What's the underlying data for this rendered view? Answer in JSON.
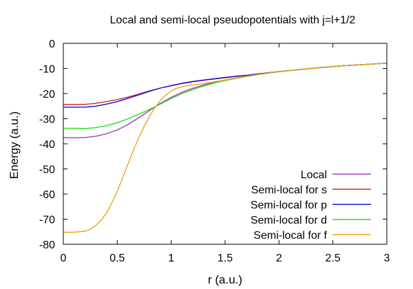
{
  "chart_data": {
    "type": "line",
    "title": "Local and semi-local pseudopotentials with j=l+1/2",
    "xlabel": "r (a.u.)",
    "ylabel": "Energy (a.u.)",
    "xlim": [
      0,
      3
    ],
    "ylim": [
      -80,
      0
    ],
    "xticks": [
      "0",
      "0.5",
      "1",
      "1.5",
      "2",
      "2.5",
      "3"
    ],
    "yticks": [
      "0",
      "-10",
      "-20",
      "-30",
      "-40",
      "-50",
      "-60",
      "-70",
      "-80"
    ],
    "grid": false,
    "legend_position": "bottom-right",
    "series": [
      {
        "name": "Local",
        "color": "#a040c0",
        "points": [
          [
            0,
            -37.6
          ],
          [
            0.1,
            -37.6
          ],
          [
            0.2,
            -37.5
          ],
          [
            0.3,
            -37.0
          ],
          [
            0.4,
            -36.0
          ],
          [
            0.5,
            -34.5
          ],
          [
            0.6,
            -32.3
          ],
          [
            0.7,
            -29.6
          ],
          [
            0.8,
            -26.7
          ],
          [
            0.9,
            -23.9
          ],
          [
            1.0,
            -21.5
          ],
          [
            1.1,
            -19.5
          ],
          [
            1.2,
            -17.9
          ],
          [
            1.3,
            -16.6
          ],
          [
            1.4,
            -15.5
          ],
          [
            1.5,
            -14.6
          ],
          [
            1.6,
            -13.8
          ],
          [
            1.7,
            -13.1
          ],
          [
            1.8,
            -12.4
          ],
          [
            1.9,
            -11.8
          ],
          [
            2.0,
            -11.3
          ],
          [
            2.2,
            -10.4
          ],
          [
            2.4,
            -9.6
          ],
          [
            2.6,
            -8.9
          ],
          [
            2.8,
            -8.4
          ],
          [
            3.0,
            -7.9
          ]
        ]
      },
      {
        "name": "Semi-local for s",
        "color": "#e02020",
        "points": [
          [
            0,
            -24.3
          ],
          [
            0.1,
            -24.3
          ],
          [
            0.2,
            -24.3
          ],
          [
            0.3,
            -23.9
          ],
          [
            0.4,
            -23.2
          ],
          [
            0.5,
            -22.4
          ],
          [
            0.6,
            -21.4
          ],
          [
            0.7,
            -20.2
          ],
          [
            0.8,
            -18.9
          ],
          [
            0.9,
            -17.8
          ],
          [
            1.0,
            -16.9
          ],
          [
            1.1,
            -16.0
          ],
          [
            1.2,
            -15.3
          ],
          [
            1.3,
            -14.7
          ],
          [
            1.4,
            -14.2
          ],
          [
            1.5,
            -13.7
          ],
          [
            1.6,
            -13.2
          ],
          [
            1.7,
            -12.8
          ],
          [
            1.8,
            -12.3
          ],
          [
            1.9,
            -11.8
          ],
          [
            2.0,
            -11.3
          ],
          [
            2.2,
            -10.4
          ],
          [
            2.4,
            -9.6
          ],
          [
            2.6,
            -8.9
          ],
          [
            2.8,
            -8.4
          ],
          [
            3.0,
            -7.9
          ]
        ]
      },
      {
        "name": "Semi-local for p",
        "color": "#1010d0",
        "points": [
          [
            0,
            -25.4
          ],
          [
            0.1,
            -25.4
          ],
          [
            0.2,
            -25.4
          ],
          [
            0.3,
            -25.0
          ],
          [
            0.4,
            -24.2
          ],
          [
            0.5,
            -23.2
          ],
          [
            0.6,
            -21.9
          ],
          [
            0.7,
            -20.5
          ],
          [
            0.8,
            -19.1
          ],
          [
            0.9,
            -17.8
          ],
          [
            1.0,
            -16.8
          ],
          [
            1.1,
            -15.9
          ],
          [
            1.2,
            -15.2
          ],
          [
            1.3,
            -14.6
          ],
          [
            1.4,
            -14.1
          ],
          [
            1.5,
            -13.6
          ],
          [
            1.6,
            -13.1
          ],
          [
            1.7,
            -12.7
          ],
          [
            1.8,
            -12.2
          ],
          [
            1.9,
            -11.7
          ],
          [
            2.0,
            -11.2
          ],
          [
            2.2,
            -10.4
          ],
          [
            2.4,
            -9.6
          ],
          [
            2.6,
            -8.9
          ],
          [
            2.8,
            -8.4
          ],
          [
            3.0,
            -7.9
          ]
        ]
      },
      {
        "name": "Semi-local for d",
        "color": "#20e020",
        "points": [
          [
            0,
            -33.8
          ],
          [
            0.1,
            -33.8
          ],
          [
            0.2,
            -33.9
          ],
          [
            0.3,
            -33.6
          ],
          [
            0.4,
            -32.8
          ],
          [
            0.5,
            -31.6
          ],
          [
            0.6,
            -30.0
          ],
          [
            0.7,
            -28.2
          ],
          [
            0.8,
            -26.3
          ],
          [
            0.9,
            -24.2
          ],
          [
            1.0,
            -22.0
          ],
          [
            1.1,
            -20.0
          ],
          [
            1.2,
            -18.4
          ],
          [
            1.3,
            -17.0
          ],
          [
            1.4,
            -15.8
          ],
          [
            1.5,
            -14.8
          ],
          [
            1.6,
            -14.0
          ],
          [
            1.7,
            -13.2
          ],
          [
            1.8,
            -12.5
          ],
          [
            1.9,
            -11.9
          ],
          [
            2.0,
            -11.3
          ],
          [
            2.2,
            -10.4
          ],
          [
            2.4,
            -9.6
          ],
          [
            2.6,
            -8.9
          ],
          [
            2.8,
            -8.4
          ],
          [
            3.0,
            -7.9
          ]
        ]
      },
      {
        "name": "Semi-local for f",
        "color": "#f0a020",
        "points": [
          [
            0,
            -75.2
          ],
          [
            0.1,
            -75.2
          ],
          [
            0.2,
            -74.8
          ],
          [
            0.25,
            -74.0
          ],
          [
            0.3,
            -72.5
          ],
          [
            0.35,
            -70.5
          ],
          [
            0.4,
            -67.5
          ],
          [
            0.45,
            -63.5
          ],
          [
            0.5,
            -59.0
          ],
          [
            0.55,
            -53.5
          ],
          [
            0.6,
            -48.0
          ],
          [
            0.65,
            -42.5
          ],
          [
            0.7,
            -37.5
          ],
          [
            0.75,
            -33.0
          ],
          [
            0.8,
            -29.0
          ],
          [
            0.85,
            -25.5
          ],
          [
            0.9,
            -22.7
          ],
          [
            0.95,
            -20.6
          ],
          [
            1.0,
            -19.0
          ],
          [
            1.05,
            -17.9
          ],
          [
            1.1,
            -17.3
          ],
          [
            1.2,
            -16.6
          ],
          [
            1.3,
            -16.0
          ],
          [
            1.4,
            -15.3
          ],
          [
            1.5,
            -14.6
          ],
          [
            1.6,
            -13.8
          ],
          [
            1.7,
            -13.1
          ],
          [
            1.8,
            -12.4
          ],
          [
            1.9,
            -11.8
          ],
          [
            2.0,
            -11.3
          ],
          [
            2.2,
            -10.4
          ],
          [
            2.4,
            -9.6
          ],
          [
            2.6,
            -8.9
          ],
          [
            2.8,
            -8.4
          ],
          [
            3.0,
            -7.9
          ]
        ]
      }
    ]
  }
}
